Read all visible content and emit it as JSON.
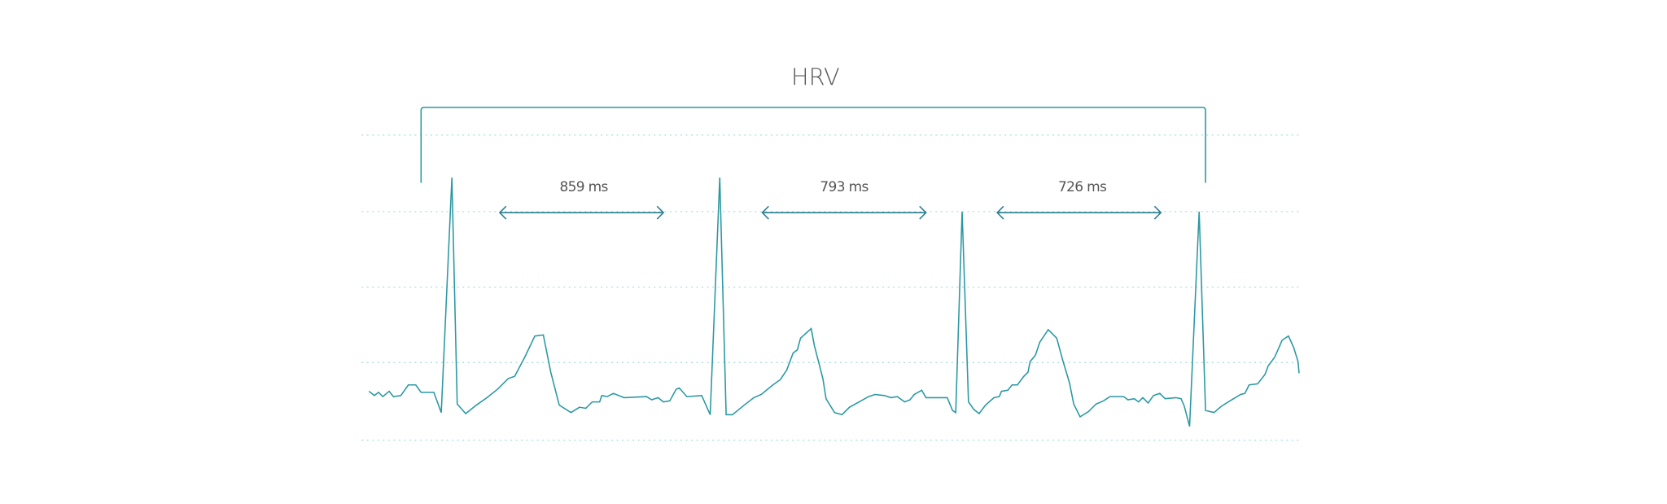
{
  "title": "HRV",
  "intervals": [
    {
      "label": "859 ms"
    },
    {
      "label": "793 ms"
    },
    {
      "label": "726 ms"
    }
  ]
}
